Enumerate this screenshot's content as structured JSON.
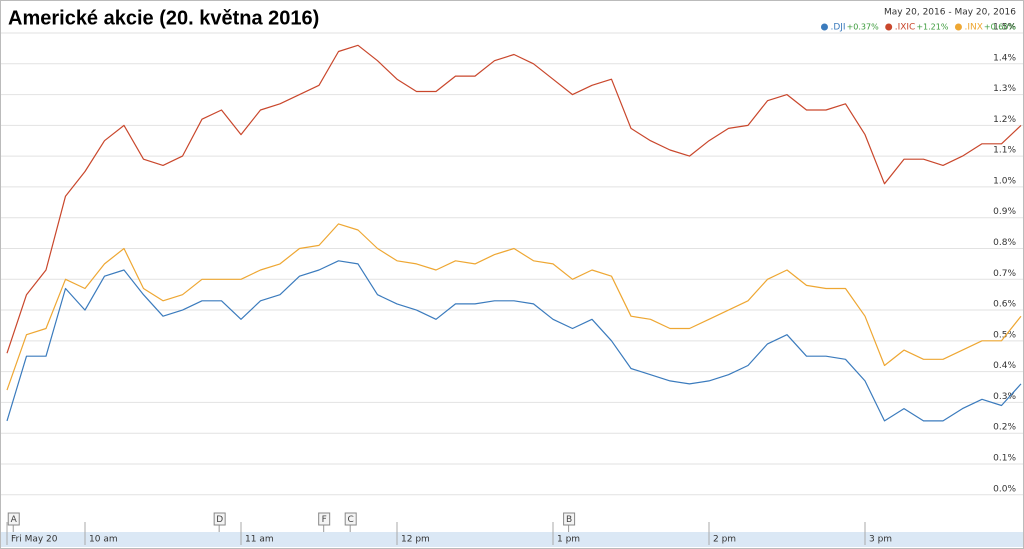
{
  "chart_data": {
    "type": "line",
    "title": "Americké akcie (20. května 2016)",
    "date_range": "May 20, 2016  -  May 20, 2016",
    "x": [
      9.5,
      9.625,
      9.75,
      9.875,
      10,
      10.125,
      10.25,
      10.375,
      10.5,
      10.625,
      10.75,
      10.875,
      11,
      11.125,
      11.25,
      11.375,
      11.5,
      11.625,
      11.75,
      11.875,
      12,
      12.125,
      12.25,
      12.375,
      12.5,
      12.625,
      12.75,
      12.875,
      13,
      13.125,
      13.25,
      13.375,
      13.5,
      13.625,
      13.75,
      13.875,
      14,
      14.125,
      14.25,
      14.375,
      14.5,
      14.625,
      14.75,
      14.875,
      15,
      15.125,
      15.25,
      15.375,
      15.5,
      15.625,
      15.75,
      15.875,
      16
    ],
    "series": [
      {
        "name": ".DJI",
        "change": "+0.37%",
        "color": "#3b7bbd",
        "values": [
          0.24,
          0.45,
          0.45,
          0.67,
          0.6,
          0.71,
          0.73,
          0.65,
          0.58,
          0.6,
          0.63,
          0.63,
          0.57,
          0.63,
          0.65,
          0.71,
          0.73,
          0.76,
          0.75,
          0.65,
          0.62,
          0.6,
          0.57,
          0.62,
          0.62,
          0.63,
          0.63,
          0.62,
          0.57,
          0.54,
          0.57,
          0.5,
          0.41,
          0.39,
          0.37,
          0.36,
          0.37,
          0.39,
          0.42,
          0.49,
          0.52,
          0.45,
          0.45,
          0.44,
          0.37,
          0.24,
          0.28,
          0.24,
          0.24,
          0.28,
          0.31,
          0.29,
          0.36
        ]
      },
      {
        "name": ".IXIC",
        "change": "+1.21%",
        "color": "#c9472c",
        "values": [
          0.46,
          0.65,
          0.73,
          0.97,
          1.05,
          1.15,
          1.2,
          1.09,
          1.07,
          1.1,
          1.22,
          1.25,
          1.17,
          1.25,
          1.27,
          1.3,
          1.33,
          1.44,
          1.46,
          1.41,
          1.35,
          1.31,
          1.31,
          1.36,
          1.36,
          1.41,
          1.43,
          1.4,
          1.35,
          1.3,
          1.33,
          1.35,
          1.19,
          1.15,
          1.12,
          1.1,
          1.15,
          1.19,
          1.2,
          1.28,
          1.3,
          1.25,
          1.25,
          1.27,
          1.17,
          1.01,
          1.09,
          1.09,
          1.07,
          1.1,
          1.14,
          1.14,
          1.2
        ]
      },
      {
        "name": ".INX",
        "change": "+0.60%",
        "color": "#eea733",
        "values": [
          0.34,
          0.52,
          0.54,
          0.7,
          0.67,
          0.75,
          0.8,
          0.67,
          0.63,
          0.65,
          0.7,
          0.7,
          0.7,
          0.73,
          0.75,
          0.8,
          0.81,
          0.88,
          0.86,
          0.8,
          0.76,
          0.75,
          0.73,
          0.76,
          0.75,
          0.78,
          0.8,
          0.76,
          0.75,
          0.7,
          0.73,
          0.71,
          0.58,
          0.57,
          0.54,
          0.54,
          0.57,
          0.6,
          0.63,
          0.7,
          0.73,
          0.68,
          0.67,
          0.67,
          0.58,
          0.42,
          0.47,
          0.44,
          0.44,
          0.47,
          0.5,
          0.5,
          0.58
        ]
      }
    ],
    "xlim": [
      9.5,
      16
    ],
    "xticks": [
      {
        "value": 9.5,
        "label": "Fri May 20"
      },
      {
        "value": 10,
        "label": "10 am"
      },
      {
        "value": 11,
        "label": "11 am"
      },
      {
        "value": 12,
        "label": "12 pm"
      },
      {
        "value": 13,
        "label": "1 pm"
      },
      {
        "value": 14,
        "label": "2 pm"
      },
      {
        "value": 15,
        "label": "3 pm"
      }
    ],
    "ylim": [
      -0.03,
      1.5
    ],
    "yticks": [
      {
        "value": 0,
        "label": "0.0%"
      },
      {
        "value": 0.1,
        "label": "0.1%"
      },
      {
        "value": 0.2,
        "label": "0.2%"
      },
      {
        "value": 0.3,
        "label": "0.3%"
      },
      {
        "value": 0.4,
        "label": "0.4%"
      },
      {
        "value": 0.5,
        "label": "0.5%"
      },
      {
        "value": 0.6,
        "label": "0.6%"
      },
      {
        "value": 0.7,
        "label": "0.7%"
      },
      {
        "value": 0.8,
        "label": "0.8%"
      },
      {
        "value": 0.9,
        "label": "0.9%"
      },
      {
        "value": 1,
        "label": "1.0%"
      },
      {
        "value": 1.1,
        "label": "1.1%"
      },
      {
        "value": 1.2,
        "label": "1.2%"
      },
      {
        "value": 1.3,
        "label": "1.3%"
      },
      {
        "value": 1.4,
        "label": "1.4%"
      },
      {
        "value": 1.5,
        "label": "1.5%"
      }
    ],
    "grid": true,
    "legend_position": "top-right",
    "annotations": [
      {
        "label": "A",
        "x": 9.54
      },
      {
        "label": "D",
        "x": 10.86
      },
      {
        "label": "F",
        "x": 11.53
      },
      {
        "label": "C",
        "x": 11.7
      },
      {
        "label": "B",
        "x": 13.1
      }
    ]
  }
}
